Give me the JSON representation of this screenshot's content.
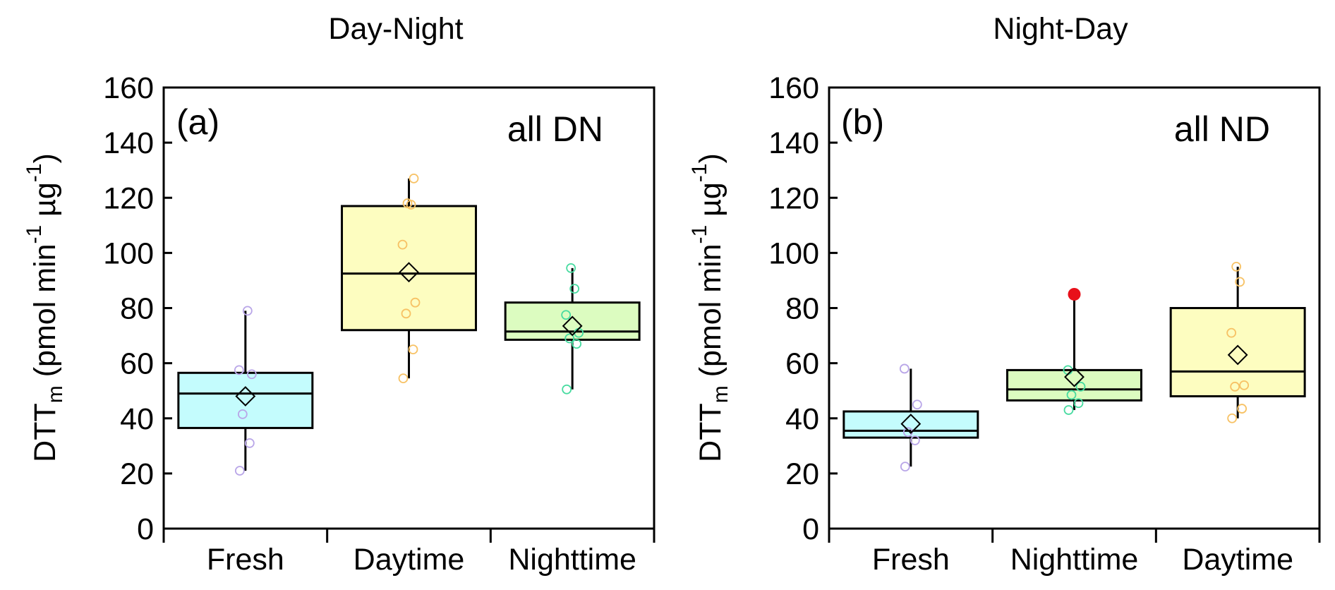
{
  "chart_data": [
    {
      "type": "box",
      "title": "Day-Night",
      "panel_label": "(a)",
      "annotation": "all DN",
      "ylabel": {
        "main": "DTT",
        "sub": "m",
        "unit_prefix": " (pmol min",
        "sup1": "-1",
        "mid": " µg",
        "sup2": "-1",
        "close": ")"
      },
      "ylim": [
        0,
        160
      ],
      "yticks": [
        0,
        20,
        40,
        60,
        80,
        100,
        120,
        140,
        160
      ],
      "categories": [
        "Fresh",
        "Daytime",
        "Nighttime"
      ],
      "boxes": [
        {
          "category": "Fresh",
          "color": "#c4fcfd",
          "point_color": "#b9a6e8",
          "q1": 36.5,
          "median": 49,
          "q3": 56.5,
          "whisker_low": 21,
          "whisker_high": 79,
          "mean": 48,
          "points": [
            21,
            31,
            41.5,
            56,
            57.5,
            79
          ],
          "outliers": []
        },
        {
          "category": "Daytime",
          "color": "#fdfdc0",
          "point_color": "#f7c265",
          "q1": 72,
          "median": 92.5,
          "q3": 117,
          "whisker_low": 54.5,
          "whisker_high": 127,
          "mean": 93,
          "points": [
            54.5,
            65,
            78,
            82,
            103,
            117.5,
            118,
            127
          ],
          "outliers": []
        },
        {
          "category": "Nighttime",
          "color": "#dcfcc0",
          "point_color": "#47dba0",
          "q1": 68.5,
          "median": 71.5,
          "q3": 82,
          "whisker_low": 50.5,
          "whisker_high": 94.5,
          "mean": 73.5,
          "points": [
            50.5,
            67,
            69,
            71,
            77.5,
            87,
            94.5
          ],
          "outliers": []
        }
      ]
    },
    {
      "type": "box",
      "title": "Night-Day",
      "panel_label": "(b)",
      "annotation": "all ND",
      "ylabel": {
        "main": "DTT",
        "sub": "m",
        "unit_prefix": " (pmol min",
        "sup1": "-1",
        "mid": " µg",
        "sup2": "-1",
        "close": ")"
      },
      "ylim": [
        0,
        160
      ],
      "yticks": [
        0,
        20,
        40,
        60,
        80,
        100,
        120,
        140,
        160
      ],
      "categories": [
        "Fresh",
        "Nighttime",
        "Daytime"
      ],
      "boxes": [
        {
          "category": "Fresh",
          "color": "#c4fcfd",
          "point_color": "#b9a6e8",
          "q1": 33,
          "median": 35.5,
          "q3": 42.5,
          "whisker_low": 22.5,
          "whisker_high": 58,
          "mean": 38,
          "points": [
            22.5,
            32,
            35,
            45,
            58
          ],
          "outliers": []
        },
        {
          "category": "Nighttime",
          "color": "#dcfcc0",
          "point_color": "#47dba0",
          "q1": 46.5,
          "median": 50.5,
          "q3": 57.5,
          "whisker_low": 43,
          "whisker_high": 85,
          "mean": 55,
          "points": [
            43,
            45.5,
            48.5,
            51.5,
            57.5
          ],
          "outliers": [
            85
          ],
          "outlier_color": "#e8101a"
        },
        {
          "category": "Daytime",
          "color": "#fdfdc0",
          "point_color": "#f7c265",
          "q1": 48,
          "median": 57,
          "q3": 80,
          "whisker_low": 40,
          "whisker_high": 95,
          "mean": 63,
          "points": [
            40,
            43.5,
            51.5,
            52,
            71,
            89.5,
            95
          ],
          "outliers": []
        }
      ]
    }
  ]
}
